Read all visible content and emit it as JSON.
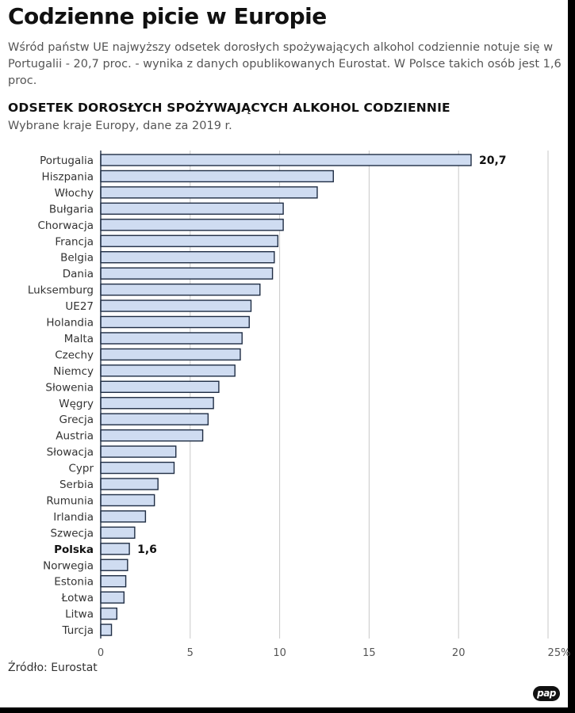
{
  "header": {
    "title": "Codzienne picie w Europie",
    "lead": "Wśród państw UE najwyższy odsetek dorosłych spożywających alkohol codziennie notuje się w Portugalii - 20,7 proc. - wynika z danych opublikowanych Eurostat. W Polsce takich osób jest 1,6 proc."
  },
  "chart_data": {
    "type": "bar",
    "orientation": "horizontal",
    "title": "ODSETEK DOROSŁYCH SPOŻYWAJĄCYCH ALKOHOL CODZIENNIE",
    "subtitle": "Wybrane kraje Europy, dane za 2019 r.",
    "categories": [
      "Portugalia",
      "Hiszpania",
      "Włochy",
      "Bułgaria",
      "Chorwacja",
      "Francja",
      "Belgia",
      "Dania",
      "Luksemburg",
      "UE27",
      "Holandia",
      "Malta",
      "Czechy",
      "Niemcy",
      "Słowenia",
      "Węgry",
      "Grecja",
      "Austria",
      "Słowacja",
      "Cypr",
      "Serbia",
      "Rumunia",
      "Irlandia",
      "Szwecja",
      "Polska",
      "Norwegia",
      "Estonia",
      "Łotwa",
      "Litwa",
      "Turcja"
    ],
    "values": [
      20.7,
      13.0,
      12.1,
      10.2,
      10.2,
      9.9,
      9.7,
      9.6,
      8.9,
      8.4,
      8.3,
      7.9,
      7.8,
      7.5,
      6.6,
      6.3,
      6.0,
      5.7,
      4.2,
      4.1,
      3.2,
      3.0,
      2.5,
      1.9,
      1.6,
      1.5,
      1.4,
      1.3,
      0.9,
      0.6
    ],
    "highlight": "Polska",
    "data_labels": [
      {
        "category": "Portugalia",
        "text": "20,7"
      },
      {
        "category": "Polska",
        "text": "1,6"
      }
    ],
    "xlim": [
      0,
      25
    ],
    "x_ticks": [
      0,
      5,
      10,
      15,
      20,
      25
    ],
    "x_tick_labels": [
      "0",
      "5",
      "10",
      "15",
      "20",
      "25%"
    ],
    "grid": "vertical",
    "bar_color": "#cfdcf1",
    "bar_edge_color": "#1f2d44"
  },
  "footer": {
    "source": "Źródło: Eurostat",
    "logo_text": "pap"
  }
}
